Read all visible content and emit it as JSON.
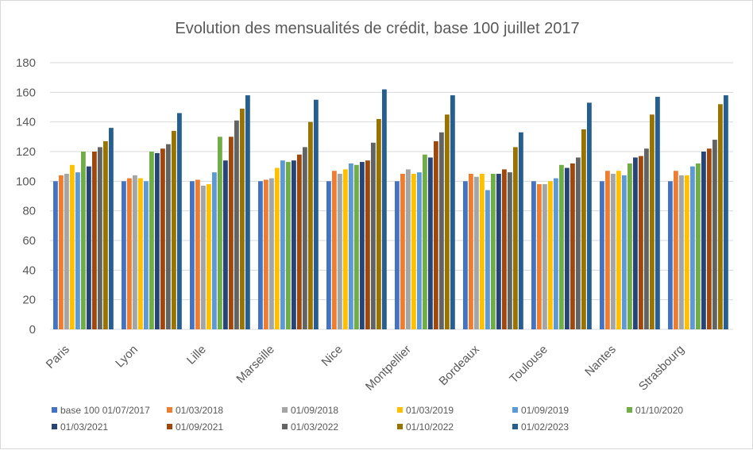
{
  "chart_data": {
    "type": "bar",
    "title": "Evolution des mensualités de crédit, base 100 juillet 2017",
    "xlabel": "",
    "ylabel": "",
    "ylim": [
      0,
      180
    ],
    "yticks": [
      0,
      20,
      40,
      60,
      80,
      100,
      120,
      140,
      160,
      180
    ],
    "grid": true,
    "legend_position": "bottom",
    "categories": [
      "Paris",
      "Lyon",
      "Lille",
      "Marseille",
      "Nice",
      "Montpellier",
      "Bordeaux",
      "Toulouse",
      "Nantes",
      "Strasbourg"
    ],
    "series": [
      {
        "name": "base 100 01/07/2017",
        "color": "#4472c4",
        "values": [
          100,
          100,
          100,
          100,
          100,
          100,
          100,
          100,
          100,
          100
        ]
      },
      {
        "name": "01/03/2018",
        "color": "#ed7d31",
        "values": [
          104,
          102,
          101,
          101,
          107,
          105,
          105,
          98,
          107,
          107
        ]
      },
      {
        "name": "01/09/2018",
        "color": "#a5a5a5",
        "values": [
          105,
          104,
          97,
          102,
          105,
          108,
          103,
          98,
          105,
          104
        ]
      },
      {
        "name": "01/03/2019",
        "color": "#ffc000",
        "values": [
          111,
          102,
          98,
          109,
          108,
          105,
          105,
          100,
          107,
          104
        ]
      },
      {
        "name": "01/09/2019",
        "color": "#5b9bd5",
        "values": [
          106,
          100,
          106,
          114,
          112,
          106,
          94,
          102,
          104,
          110
        ]
      },
      {
        "name": "01/10/2020",
        "color": "#70ad47",
        "values": [
          120,
          120,
          130,
          113,
          111,
          118,
          105,
          111,
          112,
          112
        ]
      },
      {
        "name": "01/03/2021",
        "color": "#264478",
        "values": [
          110,
          119,
          114,
          114,
          113,
          116,
          105,
          109,
          116,
          120
        ]
      },
      {
        "name": "01/09/2021",
        "color": "#9e480e",
        "values": [
          120,
          122,
          130,
          118,
          114,
          127,
          108,
          112,
          117,
          122
        ]
      },
      {
        "name": "01/03/2022",
        "color": "#636363",
        "values": [
          123,
          125,
          141,
          123,
          126,
          133,
          106,
          116,
          122,
          128
        ]
      },
      {
        "name": "01/10/2022",
        "color": "#997300",
        "values": [
          127,
          134,
          149,
          140,
          142,
          145,
          123,
          135,
          145,
          152
        ]
      },
      {
        "name": "01/02/2023",
        "color": "#255e91",
        "values": [
          136,
          146,
          158,
          155,
          162,
          158,
          133,
          153,
          157,
          158
        ]
      }
    ]
  }
}
